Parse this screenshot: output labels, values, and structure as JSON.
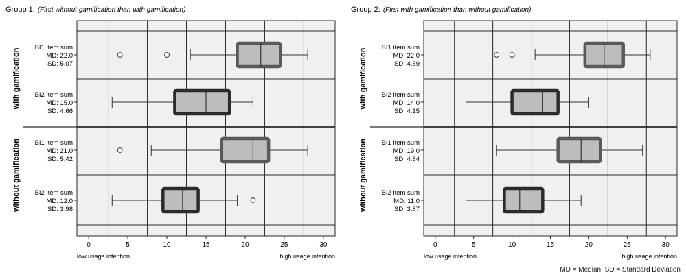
{
  "footnote": "MD = Median, SD = Standard Deviation",
  "colors": {
    "box_fill": "#bdbdbd",
    "box_light_border": "#5a5a5a",
    "box_dark_border": "#2b2b2b",
    "panel_bg": "#f0f0f0",
    "grid": "#2a2a2a",
    "whisker": "#333333"
  },
  "chart_data": [
    {
      "type": "boxplot",
      "title_prefix": "Group 1:",
      "title": "(First without gamification than with gamification)",
      "xlim": [
        -1.5,
        31.5
      ],
      "xticks": [
        0,
        5,
        10,
        15,
        20,
        25,
        30
      ],
      "xlabel_low": "low usage intention",
      "xlabel_high": "high usage intention",
      "grid": true,
      "vertical_gridlines": [
        2.5,
        7.5,
        12.5,
        17.5,
        22.5,
        27.5
      ],
      "groups": [
        {
          "label": "with gamification",
          "boxes": [
            {
              "name": "BI1 item sum",
              "md": "MD: 22.0",
              "sd": "SD: 5.07",
              "style": "light",
              "whisker_low": 13,
              "q1": 19,
              "median": 22,
              "q3": 24.5,
              "whisker_high": 28,
              "outliers": [
                4,
                10
              ]
            },
            {
              "name": "BI2 item sum",
              "md": "MD: 15.0",
              "sd": "SD: 4.66",
              "style": "dark",
              "whisker_low": 3,
              "q1": 11,
              "median": 15,
              "q3": 18,
              "whisker_high": 21,
              "outliers": []
            }
          ]
        },
        {
          "label": "without gamification",
          "boxes": [
            {
              "name": "BI1 item sum",
              "md": "MD: 21.0",
              "sd": "SD: 5.42",
              "style": "light",
              "whisker_low": 8,
              "q1": 17,
              "median": 21,
              "q3": 23,
              "whisker_high": 28,
              "outliers": [
                4
              ]
            },
            {
              "name": "BI2 item sum",
              "md": "MD: 12.0",
              "sd": "SD: 3.98",
              "style": "dark",
              "whisker_low": 3,
              "q1": 9.5,
              "median": 12,
              "q3": 14,
              "whisker_high": 19,
              "outliers": [
                21
              ]
            }
          ]
        }
      ]
    },
    {
      "type": "boxplot",
      "title_prefix": "Group 2:",
      "title": "(First with gamification than without gamification)",
      "xlim": [
        -1.5,
        31.5
      ],
      "xticks": [
        0,
        5,
        10,
        15,
        20,
        25,
        30
      ],
      "xlabel_low": "low usage intention",
      "xlabel_high": "high usage intention",
      "grid": true,
      "vertical_gridlines": [
        2.5,
        7.5,
        12.5,
        17.5,
        22.5,
        27.5
      ],
      "groups": [
        {
          "label": "with gamification",
          "boxes": [
            {
              "name": "BI1 item sum",
              "md": "MD: 22.0",
              "sd": "SD: 4.69",
              "style": "light",
              "whisker_low": 13,
              "q1": 19.5,
              "median": 22,
              "q3": 24.5,
              "whisker_high": 28,
              "outliers": [
                8,
                10
              ]
            },
            {
              "name": "BI2 item sum",
              "md": "MD: 14.0",
              "sd": "SD: 4.15",
              "style": "dark",
              "whisker_low": 4,
              "q1": 10,
              "median": 14,
              "q3": 16,
              "whisker_high": 20,
              "outliers": []
            }
          ]
        },
        {
          "label": "without gamification",
          "boxes": [
            {
              "name": "BI1 item sum",
              "md": "MD: 19.0",
              "sd": "SD: 4.84",
              "style": "light",
              "whisker_low": 8,
              "q1": 16,
              "median": 19,
              "q3": 21.5,
              "whisker_high": 27,
              "outliers": []
            },
            {
              "name": "BI2 item sum",
              "md": "MD: 11.0",
              "sd": "SD: 3.87",
              "style": "dark",
              "whisker_low": 4,
              "q1": 9,
              "median": 11,
              "q3": 14,
              "whisker_high": 19,
              "outliers": []
            }
          ]
        }
      ]
    }
  ]
}
